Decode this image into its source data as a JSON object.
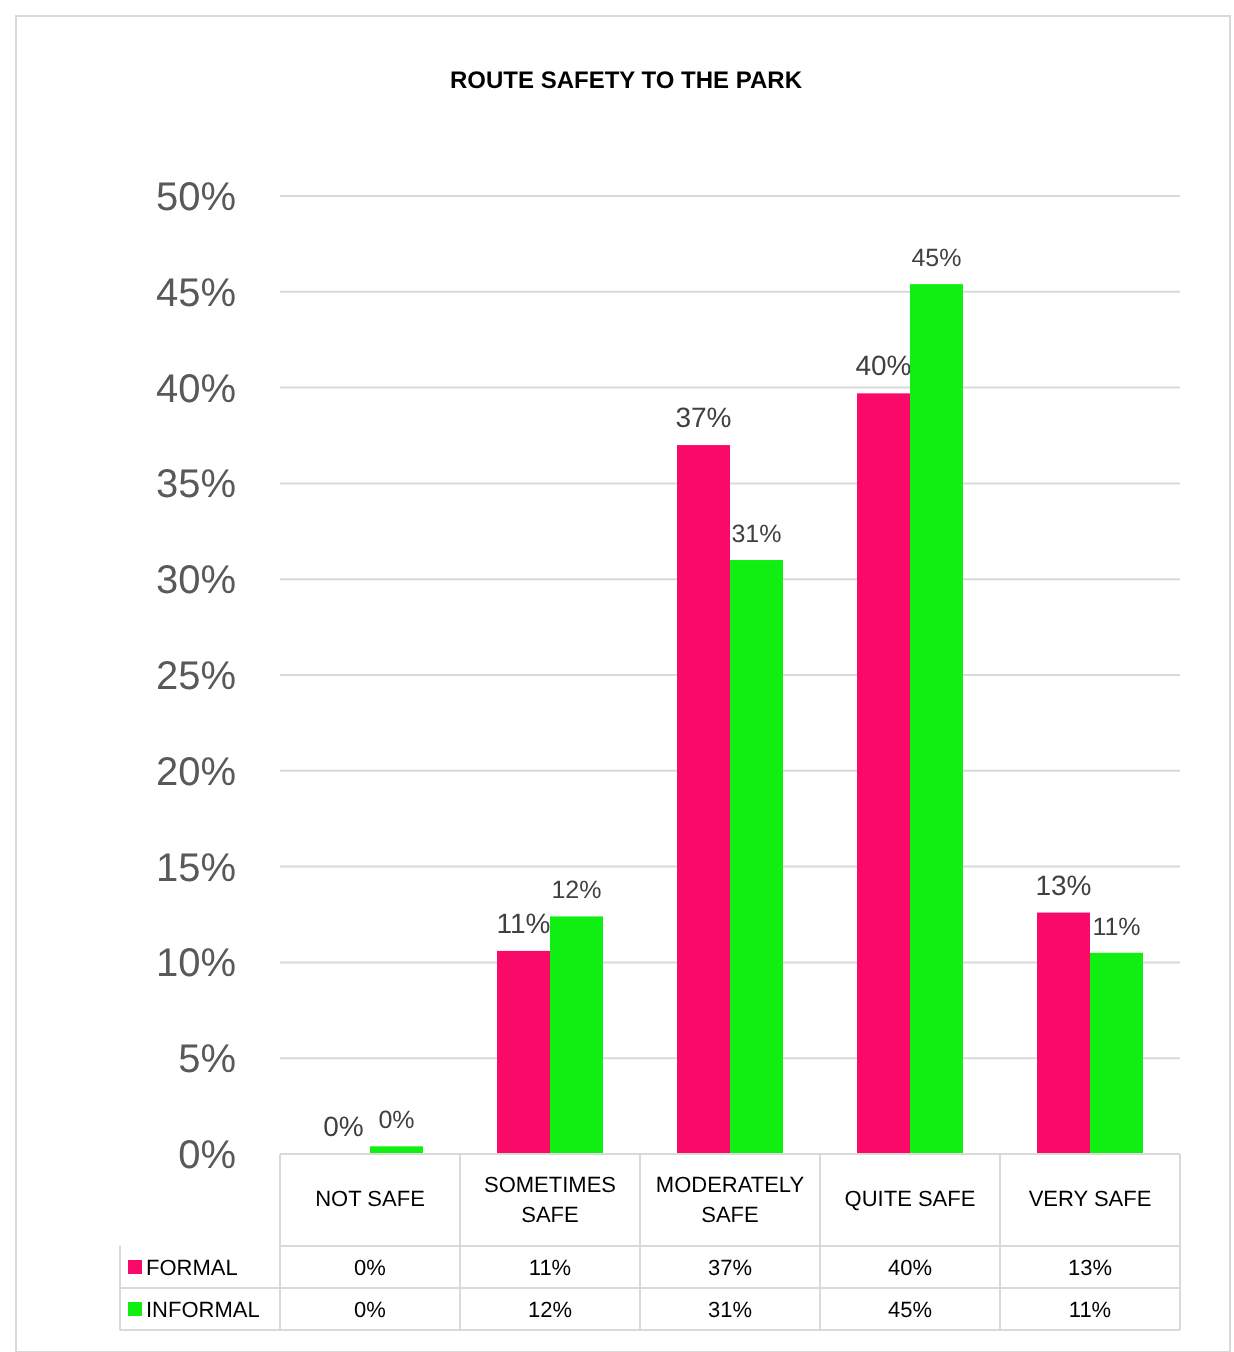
{
  "chart_data": {
    "type": "bar",
    "title": "ROUTE SAFETY TO THE PARK",
    "categories": [
      "NOT SAFE",
      "SOMETIMES SAFE",
      "MODERATELY SAFE",
      "QUITE SAFE",
      "VERY SAFE"
    ],
    "series": [
      {
        "name": "FORMAL",
        "color": "#fa0a68",
        "values": [
          0,
          10.6,
          37,
          39.7,
          12.6
        ],
        "value_labels": [
          "0%",
          "11%",
          "37%",
          "40%",
          "13%"
        ]
      },
      {
        "name": "INFORMAL",
        "color": "#11ee11",
        "values": [
          0.4,
          12.4,
          31,
          45.4,
          10.5
        ],
        "value_labels": [
          "0%",
          "12%",
          "31%",
          "45%",
          "11%"
        ]
      }
    ],
    "ylim": [
      0,
      50
    ],
    "yticks": [
      {
        "value": 0,
        "label": "0%"
      },
      {
        "value": 5,
        "label": "5%"
      },
      {
        "value": 10,
        "label": "10%"
      },
      {
        "value": 15,
        "label": "15%"
      },
      {
        "value": 20,
        "label": "20%"
      },
      {
        "value": 25,
        "label": "25%"
      },
      {
        "value": 30,
        "label": "30%"
      },
      {
        "value": 35,
        "label": "35%"
      },
      {
        "value": 40,
        "label": "40%"
      },
      {
        "value": 45,
        "label": "45%"
      },
      {
        "value": 50,
        "label": "50%"
      }
    ],
    "grid": "y",
    "legend": "bottom"
  }
}
